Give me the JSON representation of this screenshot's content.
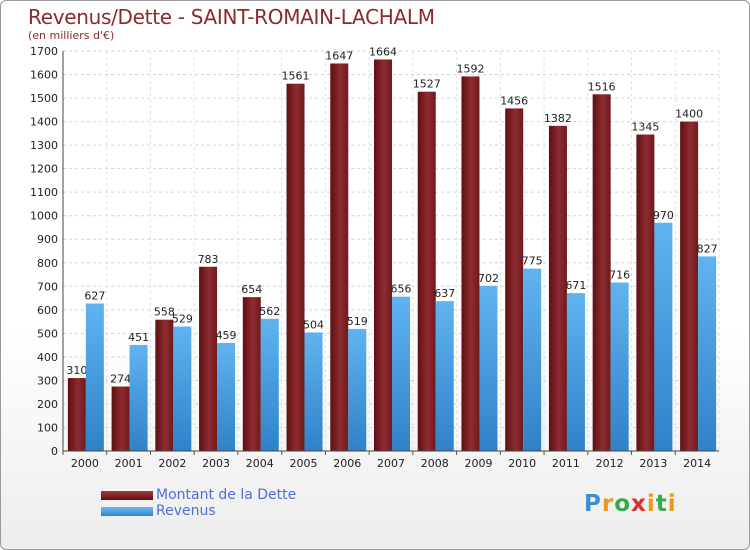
{
  "chart_data": {
    "type": "bar",
    "title": "Revenus/Dette - SAINT-ROMAIN-LACHALM",
    "subtitle": "(en milliers d'€)",
    "categories": [
      "2000",
      "2001",
      "2002",
      "2003",
      "2004",
      "2005",
      "2006",
      "2007",
      "2008",
      "2009",
      "2010",
      "2011",
      "2012",
      "2013",
      "2014"
    ],
    "series": [
      {
        "name": "Montant de la Dette",
        "color": "#7a1f22",
        "values": [
          310,
          274,
          558,
          783,
          654,
          1561,
          1647,
          1664,
          1527,
          1592,
          1456,
          1382,
          1516,
          1345,
          1400
        ]
      },
      {
        "name": "Revenus",
        "color": "#4aa3e6",
        "values": [
          627,
          451,
          529,
          459,
          562,
          504,
          519,
          656,
          637,
          702,
          775,
          671,
          716,
          970,
          827
        ]
      }
    ],
    "ylim": [
      0,
      1700
    ],
    "yticks": [
      0,
      100,
      200,
      300,
      400,
      500,
      600,
      700,
      800,
      900,
      1000,
      1100,
      1200,
      1300,
      1400,
      1500,
      1600,
      1700
    ],
    "grid": true,
    "legend_position": "bottom-left"
  },
  "brand": {
    "logo_text": "Proxiti"
  }
}
